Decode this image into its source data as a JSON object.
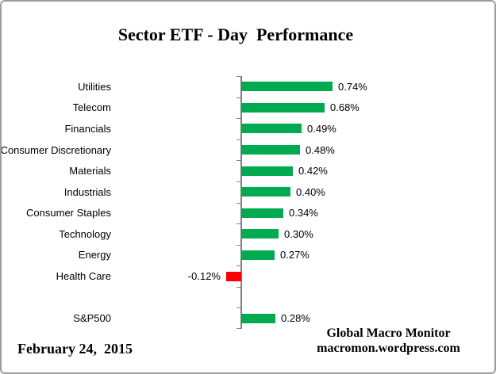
{
  "title": "Sector ETF - Day  Performance",
  "footer": {
    "date": "February 24,  2015",
    "credit_line1": "Global Macro Monitor",
    "credit_line2": "macromon.wordpress.com"
  },
  "colors": {
    "positive_bar": "#00AA50",
    "negative_bar": "#FF0000",
    "axis": "#808080",
    "border": "#9E9E9E"
  },
  "chart_data": {
    "type": "bar",
    "orientation": "horizontal",
    "title": "Sector ETF - Day  Performance",
    "value_unit": "percent",
    "xlabel": "",
    "ylabel": "",
    "gridlines": false,
    "legend": false,
    "axis_tick_labels_shown": false,
    "xlim_px_scale_note": "bars drawn from zero line; ~155px per 1%",
    "rows": [
      {
        "category": "Utilities",
        "value": 0.74,
        "label": "0.74%"
      },
      {
        "category": "Telecom",
        "value": 0.68,
        "label": "0.68%"
      },
      {
        "category": "Financials",
        "value": 0.49,
        "label": "0.49%"
      },
      {
        "category": "Consumer Discretionary",
        "value": 0.48,
        "label": "0.48%"
      },
      {
        "category": "Materials",
        "value": 0.42,
        "label": "0.42%"
      },
      {
        "category": "Industrials",
        "value": 0.4,
        "label": "0.40%"
      },
      {
        "category": "Consumer Staples",
        "value": 0.34,
        "label": "0.34%"
      },
      {
        "category": "Technology",
        "value": 0.3,
        "label": "0.30%"
      },
      {
        "category": "Energy",
        "value": 0.27,
        "label": "0.27%"
      },
      {
        "category": "Health Care",
        "value": -0.12,
        "label": "-0.12%"
      },
      {
        "category": "",
        "value": null,
        "label": ""
      },
      {
        "category": "S&P500",
        "value": 0.28,
        "label": "0.28%"
      }
    ]
  }
}
